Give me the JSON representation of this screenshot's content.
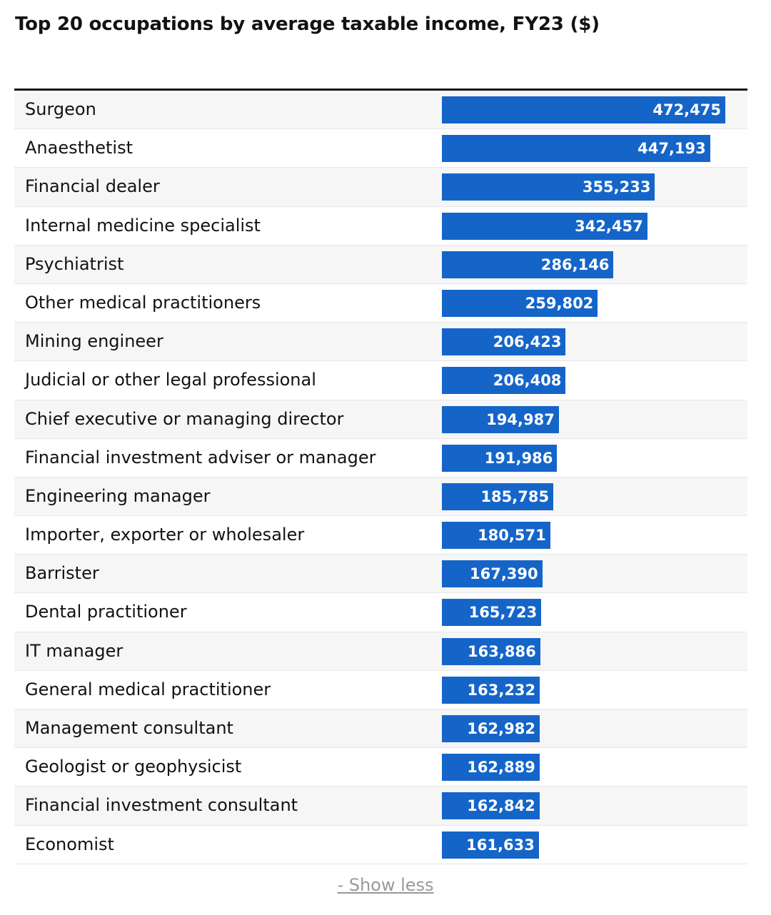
{
  "title": "Top 20 occupations by average taxable income, FY23 ($)",
  "toggle_label": "- Show less",
  "colors": {
    "bar": "#1565c9",
    "bar_text": "#ffffff",
    "row_shade": "#f6f6f6",
    "toggle": "#999999"
  },
  "chart_data": {
    "type": "bar",
    "orientation": "horizontal",
    "title": "Top 20 occupations by average taxable income, FY23 ($)",
    "categories": [
      "Surgeon",
      "Anaesthetist",
      "Financial dealer",
      "Internal medicine specialist",
      "Psychiatrist",
      "Other medical practitioners",
      "Mining engineer",
      "Judicial or other legal professional",
      "Chief executive or managing director",
      "Financial investment adviser or manager",
      "Engineering manager",
      "Importer, exporter or wholesaler",
      "Barrister",
      "Dental practitioner",
      "IT manager",
      "General medical practitioner",
      "Management consultant",
      "Geologist or geophysicist",
      "Financial investment consultant",
      "Economist"
    ],
    "values": [
      472475,
      447193,
      355233,
      342457,
      286146,
      259802,
      206423,
      206408,
      194987,
      191986,
      185785,
      180571,
      167390,
      165723,
      163886,
      163232,
      162982,
      162889,
      162842,
      161633
    ],
    "value_labels": [
      "472,475",
      "447,193",
      "355,233",
      "342,457",
      "286,146",
      "259,802",
      "206,423",
      "206,408",
      "194,987",
      "191,986",
      "185,785",
      "180,571",
      "167,390",
      "165,723",
      "163,886",
      "163,232",
      "162,982",
      "162,889",
      "162,842",
      "161,633"
    ],
    "xlim": [
      0,
      472475
    ]
  }
}
